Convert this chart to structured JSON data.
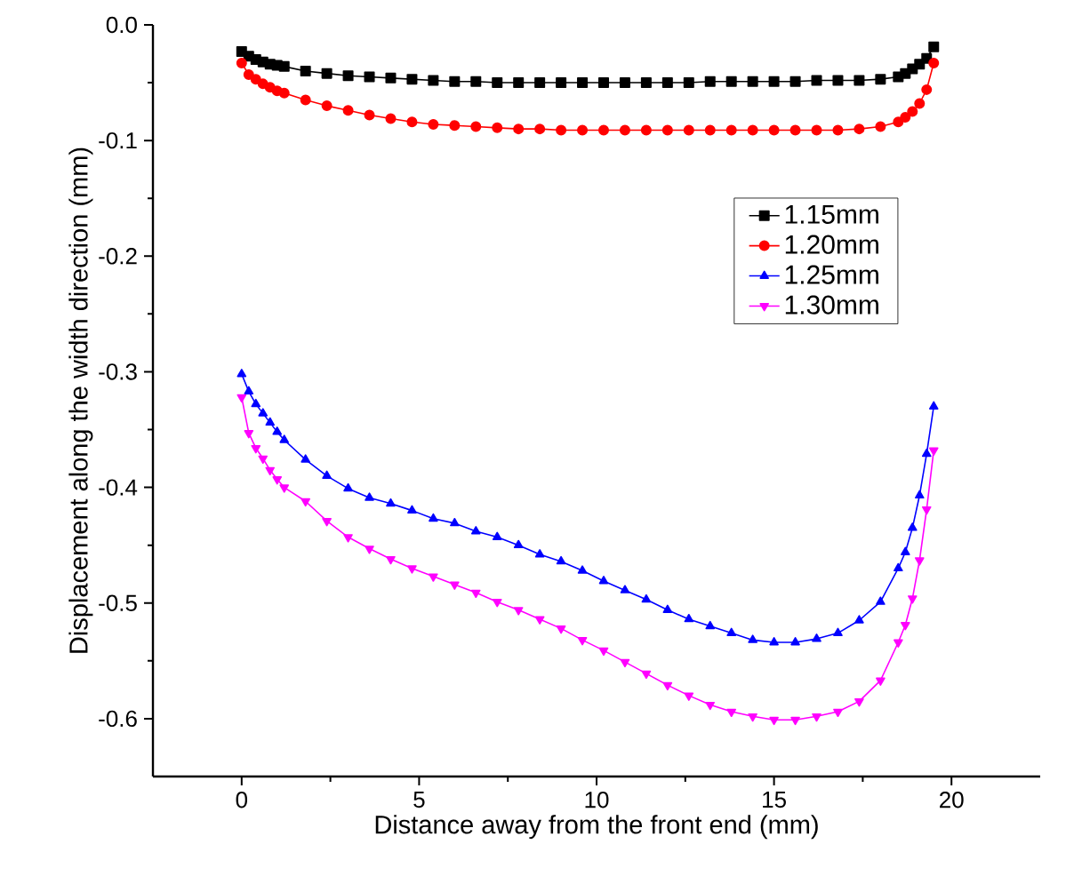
{
  "chart_data": {
    "type": "line",
    "xlabel": "Distance away from the front end (mm)",
    "ylabel": "Displacement along the width direction (mm)",
    "x": [
      0,
      0.2,
      0.4,
      0.6,
      0.8,
      1.0,
      1.2,
      1.8,
      2.4,
      3.0,
      3.6,
      4.2,
      4.8,
      5.4,
      6.0,
      6.6,
      7.2,
      7.8,
      8.4,
      9.0,
      9.6,
      10.2,
      10.8,
      11.4,
      12.0,
      12.6,
      13.2,
      13.8,
      14.4,
      15.0,
      15.6,
      16.2,
      16.8,
      17.4,
      18.0,
      18.5,
      18.7,
      18.9,
      19.1,
      19.3,
      19.5
    ],
    "series": [
      {
        "name": "1.15mm",
        "color": "#000000",
        "marker": "square",
        "values": [
          -0.023,
          -0.027,
          -0.03,
          -0.032,
          -0.034,
          -0.035,
          -0.036,
          -0.04,
          -0.042,
          -0.044,
          -0.045,
          -0.046,
          -0.047,
          -0.048,
          -0.049,
          -0.049,
          -0.05,
          -0.05,
          -0.05,
          -0.05,
          -0.05,
          -0.05,
          -0.05,
          -0.05,
          -0.05,
          -0.05,
          -0.049,
          -0.049,
          -0.049,
          -0.049,
          -0.049,
          -0.048,
          -0.048,
          -0.048,
          -0.047,
          -0.045,
          -0.042,
          -0.038,
          -0.034,
          -0.029,
          -0.019
        ]
      },
      {
        "name": "1.20mm",
        "color": "#ff0000",
        "marker": "circle",
        "values": [
          -0.033,
          -0.043,
          -0.047,
          -0.051,
          -0.054,
          -0.057,
          -0.059,
          -0.065,
          -0.07,
          -0.074,
          -0.078,
          -0.081,
          -0.084,
          -0.086,
          -0.087,
          -0.088,
          -0.089,
          -0.09,
          -0.09,
          -0.091,
          -0.091,
          -0.091,
          -0.091,
          -0.091,
          -0.091,
          -0.091,
          -0.091,
          -0.091,
          -0.091,
          -0.091,
          -0.091,
          -0.091,
          -0.091,
          -0.09,
          -0.088,
          -0.084,
          -0.08,
          -0.075,
          -0.068,
          -0.056,
          -0.033
        ]
      },
      {
        "name": "1.25mm",
        "color": "#0000ff",
        "marker": "triangle",
        "values": [
          -0.302,
          -0.317,
          -0.328,
          -0.336,
          -0.344,
          -0.352,
          -0.359,
          -0.376,
          -0.39,
          -0.401,
          -0.409,
          -0.414,
          -0.42,
          -0.427,
          -0.431,
          -0.438,
          -0.443,
          -0.45,
          -0.458,
          -0.464,
          -0.472,
          -0.481,
          -0.489,
          -0.497,
          -0.506,
          -0.514,
          -0.52,
          -0.526,
          -0.532,
          -0.534,
          -0.534,
          -0.531,
          -0.526,
          -0.515,
          -0.499,
          -0.47,
          -0.456,
          -0.435,
          -0.407,
          -0.371,
          -0.33
        ]
      },
      {
        "name": "1.30mm",
        "color": "#ff00ff",
        "marker": "triangle-down",
        "values": [
          -0.322,
          -0.353,
          -0.366,
          -0.375,
          -0.385,
          -0.393,
          -0.4,
          -0.412,
          -0.429,
          -0.443,
          -0.453,
          -0.462,
          -0.47,
          -0.477,
          -0.484,
          -0.491,
          -0.499,
          -0.506,
          -0.514,
          -0.522,
          -0.532,
          -0.541,
          -0.551,
          -0.561,
          -0.571,
          -0.58,
          -0.588,
          -0.594,
          -0.598,
          -0.601,
          -0.601,
          -0.598,
          -0.594,
          -0.585,
          -0.567,
          -0.534,
          -0.519,
          -0.496,
          -0.463,
          -0.419,
          -0.368
        ]
      }
    ],
    "xlim": [
      -2.5,
      22.5
    ],
    "xticks": [
      0,
      5,
      10,
      15,
      20
    ],
    "ylim": [
      -0.65,
      0.0
    ],
    "yticks": [
      -0.6,
      -0.5,
      -0.4,
      -0.3,
      -0.2,
      -0.1,
      {
        "value": 0.0,
        "label": "0.0"
      }
    ],
    "grid": false,
    "legend": "right",
    "line_style": "solid"
  }
}
